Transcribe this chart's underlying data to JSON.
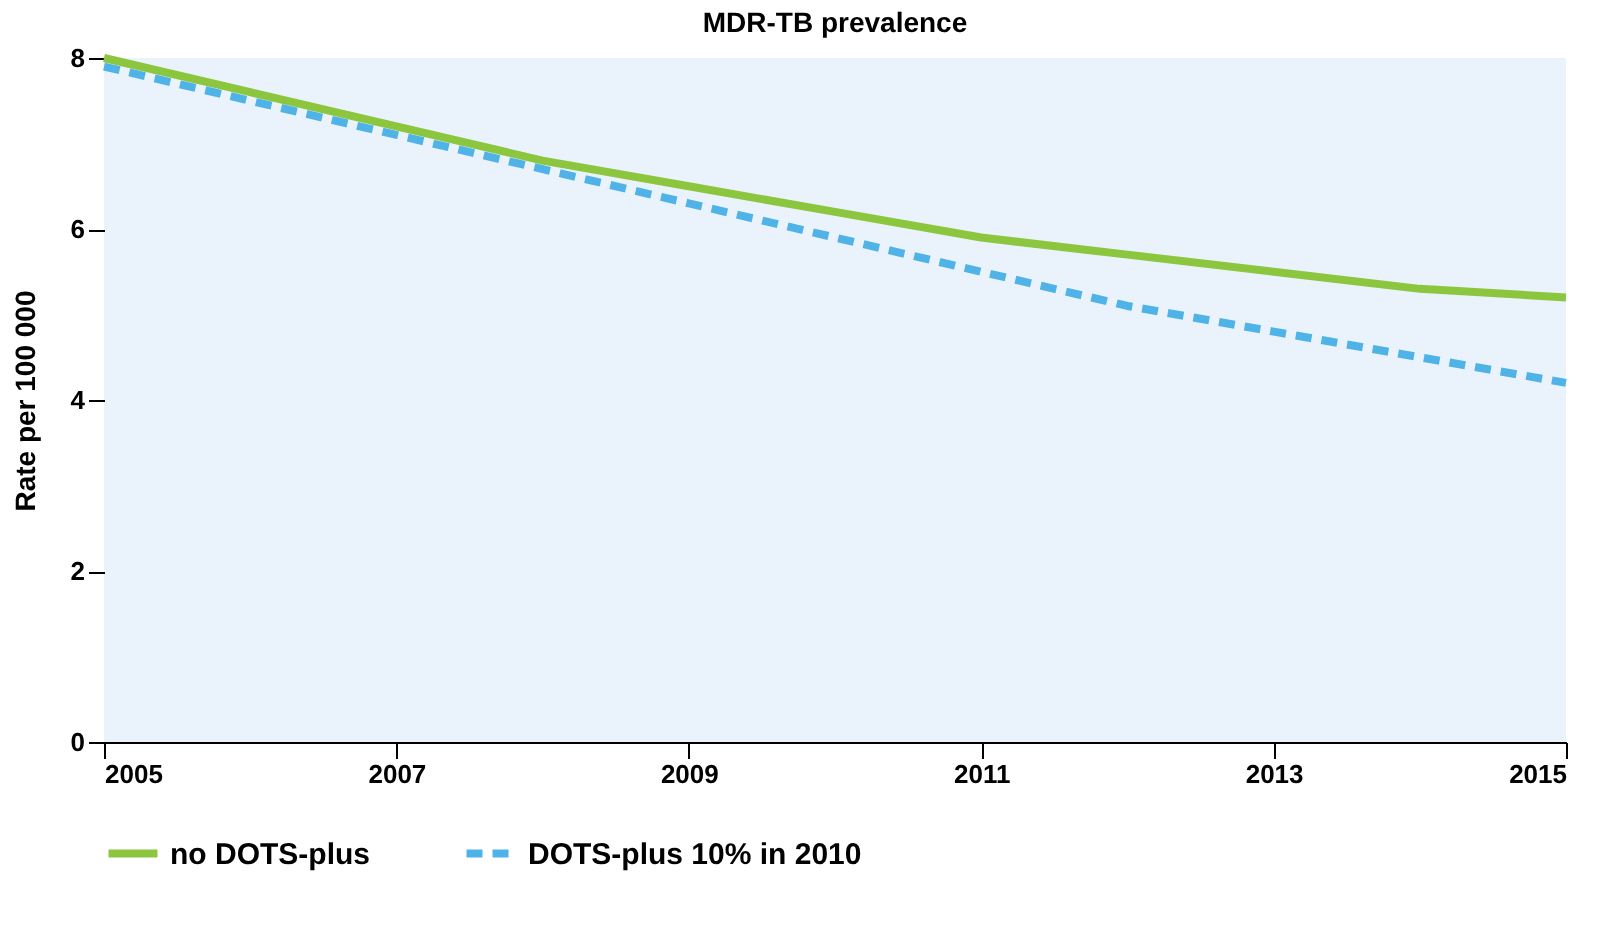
{
  "chart_data": {
    "type": "line",
    "title": "MDR-TB prevalence",
    "ylabel": "Rate per 100 000",
    "x": [
      2005,
      2006,
      2007,
      2008,
      2009,
      2010,
      2011,
      2012,
      2013,
      2014,
      2015
    ],
    "series": [
      {
        "name": "no DOTS-plus",
        "color": "#8cc63f",
        "line_style": "solid",
        "values": [
          8.0,
          7.6,
          7.2,
          6.8,
          6.5,
          6.2,
          5.9,
          5.7,
          5.5,
          5.3,
          5.2
        ]
      },
      {
        "name": "DOTS-plus 10% in 2010",
        "color": "#4fb3e8",
        "line_style": "dashed",
        "values": [
          7.9,
          7.5,
          7.1,
          6.7,
          6.3,
          5.9,
          5.5,
          5.1,
          4.8,
          4.5,
          4.2
        ]
      }
    ],
    "xlim": [
      2005,
      2015
    ],
    "xticks": [
      2005,
      2007,
      2009,
      2011,
      2013,
      2015
    ],
    "ylim": [
      0,
      8
    ],
    "yticks": [
      0,
      2,
      4,
      6,
      8
    ],
    "grid": false,
    "legend": "bottom"
  }
}
